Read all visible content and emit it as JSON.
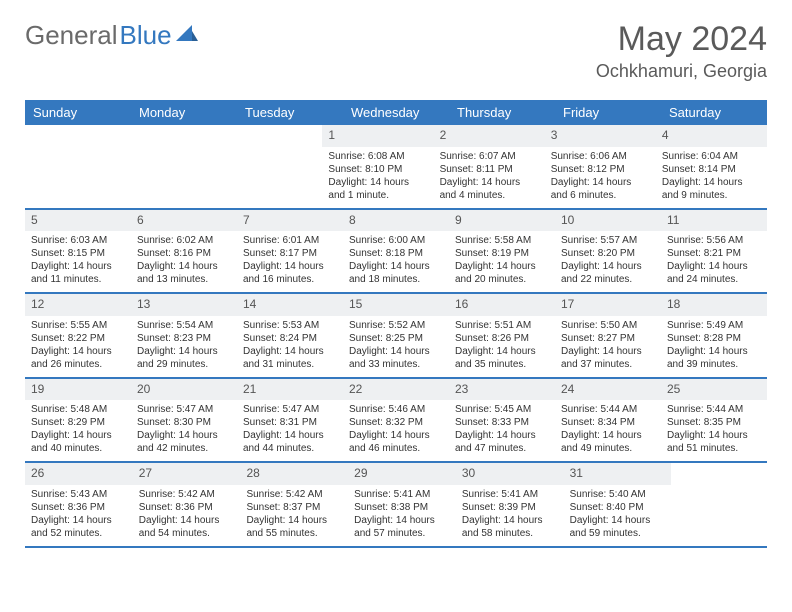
{
  "logo": {
    "text1": "General",
    "text2": "Blue"
  },
  "title": "May 2024",
  "location": "Ochkhamuri, Georgia",
  "day_names": [
    "Sunday",
    "Monday",
    "Tuesday",
    "Wednesday",
    "Thursday",
    "Friday",
    "Saturday"
  ],
  "colors": {
    "header_bg": "#3478bf",
    "header_text": "#ffffff",
    "daynum_bg": "#eef0f2",
    "text": "#333333",
    "title_text": "#5a5a5a"
  },
  "weeks": [
    [
      null,
      null,
      null,
      {
        "n": "1",
        "sr": "6:08 AM",
        "ss": "8:10 PM",
        "dl": "14 hours and 1 minute."
      },
      {
        "n": "2",
        "sr": "6:07 AM",
        "ss": "8:11 PM",
        "dl": "14 hours and 4 minutes."
      },
      {
        "n": "3",
        "sr": "6:06 AM",
        "ss": "8:12 PM",
        "dl": "14 hours and 6 minutes."
      },
      {
        "n": "4",
        "sr": "6:04 AM",
        "ss": "8:14 PM",
        "dl": "14 hours and 9 minutes."
      }
    ],
    [
      {
        "n": "5",
        "sr": "6:03 AM",
        "ss": "8:15 PM",
        "dl": "14 hours and 11 minutes."
      },
      {
        "n": "6",
        "sr": "6:02 AM",
        "ss": "8:16 PM",
        "dl": "14 hours and 13 minutes."
      },
      {
        "n": "7",
        "sr": "6:01 AM",
        "ss": "8:17 PM",
        "dl": "14 hours and 16 minutes."
      },
      {
        "n": "8",
        "sr": "6:00 AM",
        "ss": "8:18 PM",
        "dl": "14 hours and 18 minutes."
      },
      {
        "n": "9",
        "sr": "5:58 AM",
        "ss": "8:19 PM",
        "dl": "14 hours and 20 minutes."
      },
      {
        "n": "10",
        "sr": "5:57 AM",
        "ss": "8:20 PM",
        "dl": "14 hours and 22 minutes."
      },
      {
        "n": "11",
        "sr": "5:56 AM",
        "ss": "8:21 PM",
        "dl": "14 hours and 24 minutes."
      }
    ],
    [
      {
        "n": "12",
        "sr": "5:55 AM",
        "ss": "8:22 PM",
        "dl": "14 hours and 26 minutes."
      },
      {
        "n": "13",
        "sr": "5:54 AM",
        "ss": "8:23 PM",
        "dl": "14 hours and 29 minutes."
      },
      {
        "n": "14",
        "sr": "5:53 AM",
        "ss": "8:24 PM",
        "dl": "14 hours and 31 minutes."
      },
      {
        "n": "15",
        "sr": "5:52 AM",
        "ss": "8:25 PM",
        "dl": "14 hours and 33 minutes."
      },
      {
        "n": "16",
        "sr": "5:51 AM",
        "ss": "8:26 PM",
        "dl": "14 hours and 35 minutes."
      },
      {
        "n": "17",
        "sr": "5:50 AM",
        "ss": "8:27 PM",
        "dl": "14 hours and 37 minutes."
      },
      {
        "n": "18",
        "sr": "5:49 AM",
        "ss": "8:28 PM",
        "dl": "14 hours and 39 minutes."
      }
    ],
    [
      {
        "n": "19",
        "sr": "5:48 AM",
        "ss": "8:29 PM",
        "dl": "14 hours and 40 minutes."
      },
      {
        "n": "20",
        "sr": "5:47 AM",
        "ss": "8:30 PM",
        "dl": "14 hours and 42 minutes."
      },
      {
        "n": "21",
        "sr": "5:47 AM",
        "ss": "8:31 PM",
        "dl": "14 hours and 44 minutes."
      },
      {
        "n": "22",
        "sr": "5:46 AM",
        "ss": "8:32 PM",
        "dl": "14 hours and 46 minutes."
      },
      {
        "n": "23",
        "sr": "5:45 AM",
        "ss": "8:33 PM",
        "dl": "14 hours and 47 minutes."
      },
      {
        "n": "24",
        "sr": "5:44 AM",
        "ss": "8:34 PM",
        "dl": "14 hours and 49 minutes."
      },
      {
        "n": "25",
        "sr": "5:44 AM",
        "ss": "8:35 PM",
        "dl": "14 hours and 51 minutes."
      }
    ],
    [
      {
        "n": "26",
        "sr": "5:43 AM",
        "ss": "8:36 PM",
        "dl": "14 hours and 52 minutes."
      },
      {
        "n": "27",
        "sr": "5:42 AM",
        "ss": "8:36 PM",
        "dl": "14 hours and 54 minutes."
      },
      {
        "n": "28",
        "sr": "5:42 AM",
        "ss": "8:37 PM",
        "dl": "14 hours and 55 minutes."
      },
      {
        "n": "29",
        "sr": "5:41 AM",
        "ss": "8:38 PM",
        "dl": "14 hours and 57 minutes."
      },
      {
        "n": "30",
        "sr": "5:41 AM",
        "ss": "8:39 PM",
        "dl": "14 hours and 58 minutes."
      },
      {
        "n": "31",
        "sr": "5:40 AM",
        "ss": "8:40 PM",
        "dl": "14 hours and 59 minutes."
      },
      null
    ]
  ]
}
